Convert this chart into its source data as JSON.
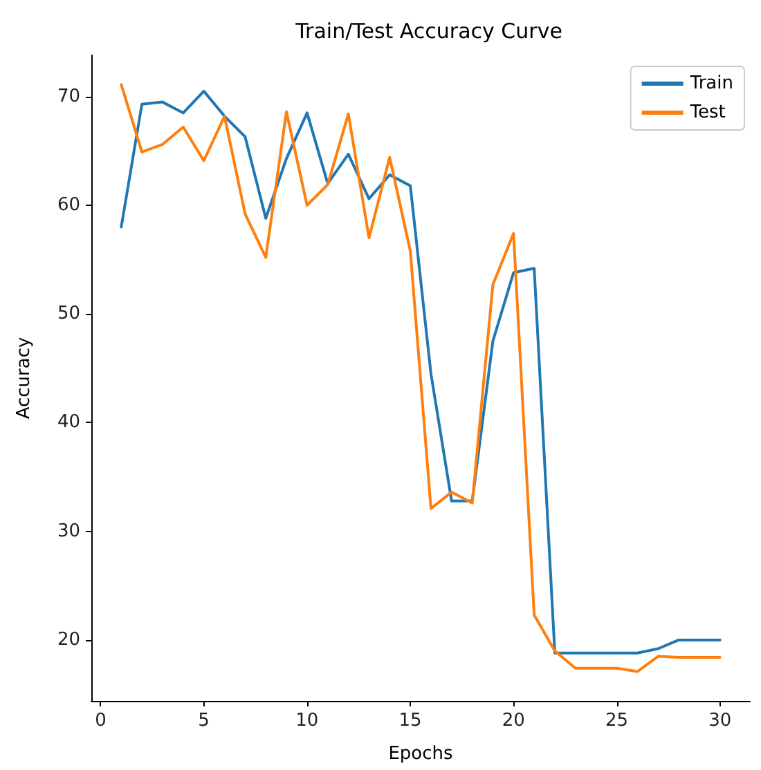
{
  "chart_data": {
    "type": "line",
    "title": "Train/Test Accuracy Curve",
    "xlabel": "Epochs",
    "ylabel": "Accuracy",
    "x": [
      1,
      2,
      3,
      4,
      5,
      6,
      7,
      8,
      9,
      10,
      11,
      12,
      13,
      14,
      15,
      16,
      17,
      18,
      19,
      20,
      21,
      22,
      23,
      24,
      25,
      26,
      27,
      28,
      29,
      30
    ],
    "series": [
      {
        "name": "Train",
        "color": "#1f77b4",
        "values": [
          58.0,
          69.3,
          69.5,
          68.5,
          70.5,
          68.2,
          66.3,
          58.8,
          64.3,
          68.5,
          62.0,
          64.7,
          60.6,
          62.8,
          61.8,
          44.5,
          32.8,
          32.8,
          47.5,
          53.8,
          54.2,
          18.8,
          18.8,
          18.8,
          18.8,
          18.8,
          19.2,
          20.0,
          20.0,
          20.0
        ]
      },
      {
        "name": "Test",
        "color": "#ff7f0e",
        "values": [
          71.1,
          64.9,
          65.6,
          67.2,
          64.1,
          68.2,
          59.2,
          55.2,
          68.6,
          60.0,
          61.9,
          68.4,
          57.0,
          64.4,
          55.8,
          32.1,
          33.6,
          32.6,
          52.7,
          57.4,
          22.3,
          19.0,
          17.4,
          17.4,
          17.4,
          17.1,
          18.5,
          18.4,
          18.4,
          18.4
        ]
      }
    ],
    "xlim": [
      -0.45,
      31.45
    ],
    "xticks": [
      0,
      5,
      10,
      15,
      20,
      25,
      30
    ],
    "ylim": [
      14.4,
      73.8
    ],
    "yticks": [
      20,
      30,
      40,
      50,
      60,
      70
    ],
    "grid": false,
    "legend": "top right",
    "marker": "none",
    "line_style": "solid"
  }
}
